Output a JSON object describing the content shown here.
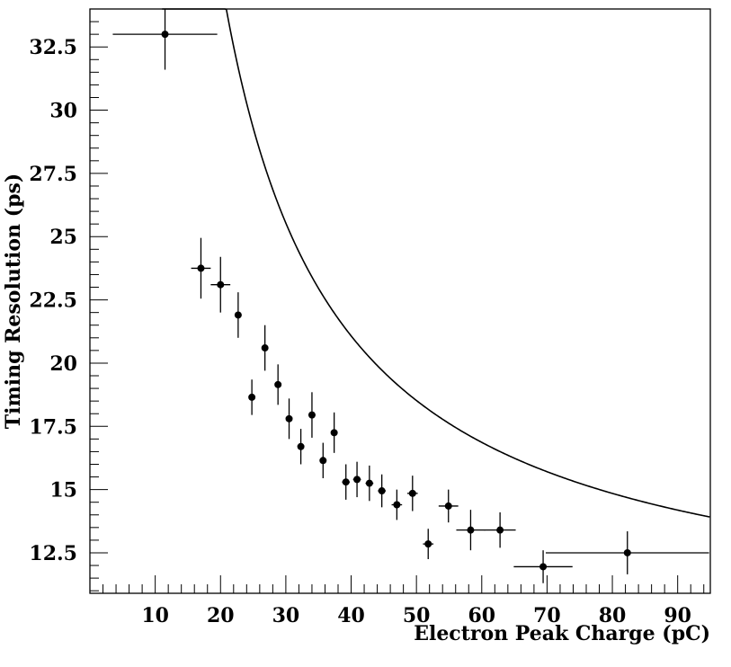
{
  "chart_data": {
    "type": "scatter",
    "title": "",
    "xlabel": "Electron Peak Charge (pC)",
    "ylabel": "Timing Resolution (ps)",
    "xlim": [
      0,
      95
    ],
    "ylim": [
      10.9,
      34.0
    ],
    "xticks": [
      10,
      20,
      30,
      40,
      50,
      60,
      70,
      80,
      90
    ],
    "yticks": [
      12.5,
      15,
      17.5,
      20,
      22.5,
      25,
      27.5,
      30,
      32.5
    ],
    "xtick_labels": [
      "10",
      "20",
      "30",
      "40",
      "50",
      "60",
      "70",
      "80",
      "90"
    ],
    "ytick_labels": [
      "12.5",
      "15",
      "17.5",
      "20",
      "22.5",
      "25",
      "27.5",
      "30",
      "32.5"
    ],
    "grid": false,
    "legend": "none",
    "series": [
      {
        "kind": "points-with-errorbars",
        "color": "#000000",
        "points": [
          {
            "x": 11.5,
            "y": 33.0,
            "xerr": 8.0,
            "yerr": 1.4
          },
          {
            "x": 17.0,
            "y": 23.75,
            "xerr": 1.5,
            "yerr": 1.2
          },
          {
            "x": 20.0,
            "y": 23.1,
            "xerr": 1.5,
            "yerr": 1.1
          },
          {
            "x": 22.7,
            "y": 21.9,
            "xerr": 0.5,
            "yerr": 0.9
          },
          {
            "x": 24.8,
            "y": 18.65,
            "xerr": 0.5,
            "yerr": 0.7
          },
          {
            "x": 26.8,
            "y": 20.6,
            "xerr": 0.5,
            "yerr": 0.9
          },
          {
            "x": 28.8,
            "y": 19.15,
            "xerr": 0.5,
            "yerr": 0.8
          },
          {
            "x": 30.5,
            "y": 17.8,
            "xerr": 0.5,
            "yerr": 0.8
          },
          {
            "x": 32.3,
            "y": 16.7,
            "xerr": 0.5,
            "yerr": 0.7
          },
          {
            "x": 34.0,
            "y": 17.95,
            "xerr": 0.5,
            "yerr": 0.9
          },
          {
            "x": 35.7,
            "y": 16.15,
            "xerr": 0.5,
            "yerr": 0.7
          },
          {
            "x": 37.4,
            "y": 17.25,
            "xerr": 0.5,
            "yerr": 0.8
          },
          {
            "x": 39.2,
            "y": 15.3,
            "xerr": 0.6,
            "yerr": 0.7
          },
          {
            "x": 40.9,
            "y": 15.4,
            "xerr": 0.6,
            "yerr": 0.7
          },
          {
            "x": 42.8,
            "y": 15.25,
            "xerr": 0.6,
            "yerr": 0.7
          },
          {
            "x": 44.7,
            "y": 14.95,
            "xerr": 0.6,
            "yerr": 0.65
          },
          {
            "x": 47.0,
            "y": 14.4,
            "xerr": 0.8,
            "yerr": 0.6
          },
          {
            "x": 49.4,
            "y": 14.85,
            "xerr": 0.8,
            "yerr": 0.7
          },
          {
            "x": 51.8,
            "y": 12.85,
            "xerr": 0.8,
            "yerr": 0.6
          },
          {
            "x": 54.9,
            "y": 14.35,
            "xerr": 1.5,
            "yerr": 0.65
          },
          {
            "x": 58.3,
            "y": 13.4,
            "xerr": 2.2,
            "yerr": 0.8
          },
          {
            "x": 62.8,
            "y": 13.4,
            "xerr": 2.4,
            "yerr": 0.7
          },
          {
            "x": 69.4,
            "y": 11.95,
            "xerr": 4.5,
            "yerr": 0.65
          },
          {
            "x": 82.3,
            "y": 12.5,
            "xerr": 12.5,
            "yerr": 0.85
          }
        ]
      },
      {
        "kind": "fit-curve",
        "color": "#000000",
        "model": "y = a / (x - c) + b",
        "a": 440,
        "b": 9.12,
        "c": 3.2,
        "x_range": [
          11.05,
          94.9
        ]
      }
    ]
  }
}
